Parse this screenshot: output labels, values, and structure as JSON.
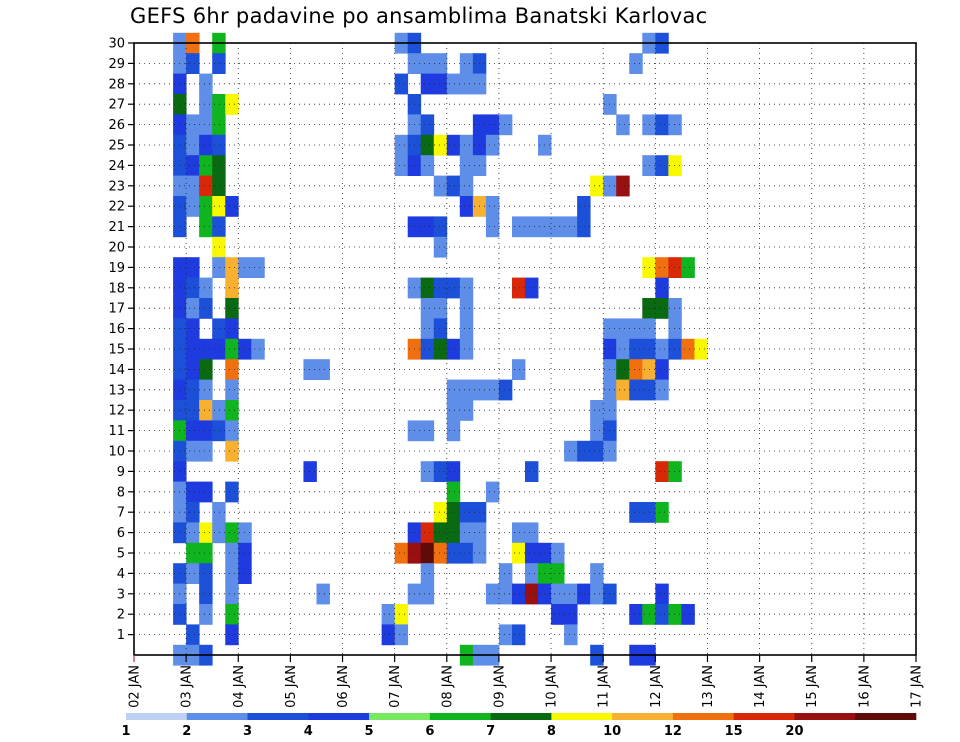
{
  "page": {
    "title": "GEFS 6hr padavine po ansamblima Banatski Karlovac"
  },
  "chart_data": {
    "type": "heatmap",
    "title": "GEFS 6hr padavine po ansamblima Banatski Karlovac",
    "x_ticks": [
      "02 JAN",
      "03 JAN",
      "04 JAN",
      "05 JAN",
      "06 JAN",
      "07 JAN",
      "08 JAN",
      "09 JAN",
      "10 JAN",
      "11 JAN",
      "12 JAN",
      "13 JAN",
      "14 JAN",
      "15 JAN",
      "16 JAN",
      "17 JAN"
    ],
    "y_ticks": [
      1,
      2,
      3,
      4,
      5,
      6,
      7,
      8,
      9,
      10,
      11,
      12,
      13,
      14,
      15,
      16,
      17,
      18,
      19,
      20,
      21,
      22,
      23,
      24,
      25,
      26,
      27,
      28,
      29,
      30
    ],
    "ylim": [
      0,
      30
    ],
    "grid": true,
    "step_hours": 6,
    "legend": {
      "placement": "bottom",
      "levels": [
        "1",
        "2",
        "3",
        "4",
        "5",
        "6",
        "7",
        "8",
        "10",
        "12",
        "15",
        "20"
      ],
      "colors": [
        "#bfd0f5",
        "#5f8ee8",
        "#1d50d8",
        "#1e3be0",
        "#77e860",
        "#10b41e",
        "#0a6a12",
        "#f8f800",
        "#f8b030",
        "#f07010",
        "#d82808",
        "#981010",
        "#600a0a"
      ]
    },
    "cells": [
      [
        30,
        3,
        1
      ],
      [
        30,
        4,
        9
      ],
      [
        30,
        6,
        5
      ],
      [
        30,
        20,
        1
      ],
      [
        30,
        21,
        2
      ],
      [
        30,
        39,
        1
      ],
      [
        30,
        40,
        2
      ],
      [
        29,
        3,
        1
      ],
      [
        29,
        4,
        2
      ],
      [
        29,
        6,
        2
      ],
      [
        29,
        21,
        1
      ],
      [
        29,
        22,
        1
      ],
      [
        29,
        23,
        1
      ],
      [
        29,
        25,
        1
      ],
      [
        29,
        26,
        2
      ],
      [
        29,
        38,
        1
      ],
      [
        28,
        3,
        3
      ],
      [
        28,
        5,
        1
      ],
      [
        28,
        20,
        2
      ],
      [
        28,
        22,
        3
      ],
      [
        28,
        23,
        3
      ],
      [
        28,
        24,
        1
      ],
      [
        28,
        25,
        1
      ],
      [
        28,
        26,
        1
      ],
      [
        27,
        3,
        6
      ],
      [
        27,
        5,
        1
      ],
      [
        27,
        6,
        5
      ],
      [
        27,
        7,
        7
      ],
      [
        27,
        21,
        2
      ],
      [
        27,
        36,
        1
      ],
      [
        26,
        3,
        3
      ],
      [
        26,
        4,
        1
      ],
      [
        26,
        5,
        1
      ],
      [
        26,
        6,
        5
      ],
      [
        26,
        21,
        1
      ],
      [
        26,
        22,
        2
      ],
      [
        26,
        26,
        3
      ],
      [
        26,
        27,
        3
      ],
      [
        26,
        28,
        1
      ],
      [
        26,
        37,
        1
      ],
      [
        26,
        39,
        1
      ],
      [
        26,
        40,
        2
      ],
      [
        26,
        41,
        1
      ],
      [
        25,
        3,
        2
      ],
      [
        25,
        4,
        1
      ],
      [
        25,
        5,
        3
      ],
      [
        25,
        6,
        2
      ],
      [
        25,
        20,
        1
      ],
      [
        25,
        21,
        2
      ],
      [
        25,
        22,
        6
      ],
      [
        25,
        23,
        7
      ],
      [
        25,
        24,
        3
      ],
      [
        25,
        25,
        1
      ],
      [
        25,
        26,
        3
      ],
      [
        25,
        27,
        1
      ],
      [
        25,
        31,
        1
      ],
      [
        24,
        3,
        2
      ],
      [
        24,
        4,
        3
      ],
      [
        24,
        5,
        5
      ],
      [
        24,
        6,
        6
      ],
      [
        24,
        20,
        1
      ],
      [
        24,
        21,
        3
      ],
      [
        24,
        22,
        1
      ],
      [
        24,
        25,
        1
      ],
      [
        24,
        26,
        1
      ],
      [
        24,
        39,
        1
      ],
      [
        24,
        40,
        2
      ],
      [
        24,
        41,
        7
      ],
      [
        23,
        3,
        1
      ],
      [
        23,
        4,
        1
      ],
      [
        23,
        5,
        10
      ],
      [
        23,
        6,
        6
      ],
      [
        23,
        23,
        1
      ],
      [
        23,
        24,
        2
      ],
      [
        23,
        25,
        1
      ],
      [
        23,
        35,
        7
      ],
      [
        23,
        36,
        1
      ],
      [
        23,
        37,
        11
      ],
      [
        22,
        3,
        2
      ],
      [
        22,
        4,
        1
      ],
      [
        22,
        5,
        5
      ],
      [
        22,
        6,
        7
      ],
      [
        22,
        7,
        3
      ],
      [
        22,
        25,
        3
      ],
      [
        22,
        26,
        8
      ],
      [
        22,
        27,
        1
      ],
      [
        22,
        34,
        2
      ],
      [
        21,
        3,
        2
      ],
      [
        21,
        5,
        5
      ],
      [
        21,
        6,
        2
      ],
      [
        21,
        21,
        3
      ],
      [
        21,
        22,
        3
      ],
      [
        21,
        23,
        2
      ],
      [
        21,
        27,
        1
      ],
      [
        21,
        29,
        1
      ],
      [
        21,
        30,
        1
      ],
      [
        21,
        31,
        1
      ],
      [
        21,
        32,
        1
      ],
      [
        21,
        33,
        1
      ],
      [
        21,
        34,
        2
      ],
      [
        20,
        6,
        7
      ],
      [
        20,
        23,
        1
      ],
      [
        19,
        3,
        3
      ],
      [
        19,
        4,
        3
      ],
      [
        19,
        6,
        1
      ],
      [
        19,
        7,
        8
      ],
      [
        19,
        8,
        1
      ],
      [
        19,
        9,
        1
      ],
      [
        19,
        39,
        7
      ],
      [
        19,
        40,
        9
      ],
      [
        19,
        41,
        10
      ],
      [
        19,
        42,
        5
      ],
      [
        18,
        3,
        3
      ],
      [
        18,
        4,
        2
      ],
      [
        18,
        5,
        1
      ],
      [
        18,
        7,
        8
      ],
      [
        18,
        21,
        1
      ],
      [
        18,
        22,
        6
      ],
      [
        18,
        23,
        2
      ],
      [
        18,
        24,
        2
      ],
      [
        18,
        25,
        1
      ],
      [
        18,
        29,
        10
      ],
      [
        18,
        30,
        3
      ],
      [
        18,
        40,
        3
      ],
      [
        17,
        3,
        3
      ],
      [
        17,
        4,
        1
      ],
      [
        17,
        5,
        2
      ],
      [
        17,
        7,
        6
      ],
      [
        17,
        22,
        1
      ],
      [
        17,
        23,
        1
      ],
      [
        17,
        25,
        1
      ],
      [
        17,
        39,
        6
      ],
      [
        17,
        40,
        6
      ],
      [
        17,
        41,
        1
      ],
      [
        16,
        3,
        2
      ],
      [
        16,
        4,
        3
      ],
      [
        16,
        6,
        2
      ],
      [
        16,
        7,
        3
      ],
      [
        16,
        22,
        1
      ],
      [
        16,
        23,
        2
      ],
      [
        16,
        25,
        1
      ],
      [
        16,
        36,
        1
      ],
      [
        16,
        37,
        1
      ],
      [
        16,
        38,
        1
      ],
      [
        16,
        39,
        1
      ],
      [
        16,
        41,
        1
      ],
      [
        15,
        3,
        2
      ],
      [
        15,
        4,
        3
      ],
      [
        15,
        5,
        3
      ],
      [
        15,
        6,
        3
      ],
      [
        15,
        7,
        5
      ],
      [
        15,
        8,
        3
      ],
      [
        15,
        9,
        1
      ],
      [
        15,
        21,
        9
      ],
      [
        15,
        22,
        2
      ],
      [
        15,
        23,
        6
      ],
      [
        15,
        24,
        3
      ],
      [
        15,
        25,
        1
      ],
      [
        15,
        36,
        3
      ],
      [
        15,
        37,
        1
      ],
      [
        15,
        38,
        2
      ],
      [
        15,
        39,
        2
      ],
      [
        15,
        40,
        1
      ],
      [
        15,
        41,
        2
      ],
      [
        15,
        42,
        9
      ],
      [
        15,
        43,
        7
      ],
      [
        14,
        3,
        2
      ],
      [
        14,
        4,
        3
      ],
      [
        14,
        5,
        6
      ],
      [
        14,
        7,
        9
      ],
      [
        14,
        13,
        1
      ],
      [
        14,
        14,
        1
      ],
      [
        14,
        29,
        1
      ],
      [
        14,
        36,
        1
      ],
      [
        14,
        37,
        6
      ],
      [
        14,
        38,
        9
      ],
      [
        14,
        39,
        8
      ],
      [
        14,
        40,
        3
      ],
      [
        13,
        3,
        3
      ],
      [
        13,
        4,
        2
      ],
      [
        13,
        5,
        1
      ],
      [
        13,
        7,
        1
      ],
      [
        13,
        24,
        1
      ],
      [
        13,
        25,
        1
      ],
      [
        13,
        26,
        1
      ],
      [
        13,
        27,
        1
      ],
      [
        13,
        28,
        2
      ],
      [
        13,
        36,
        1
      ],
      [
        13,
        37,
        8
      ],
      [
        13,
        38,
        2
      ],
      [
        13,
        39,
        2
      ],
      [
        13,
        40,
        1
      ],
      [
        12,
        3,
        2
      ],
      [
        12,
        4,
        2
      ],
      [
        12,
        5,
        8
      ],
      [
        12,
        6,
        1
      ],
      [
        12,
        7,
        5
      ],
      [
        12,
        24,
        1
      ],
      [
        12,
        25,
        1
      ],
      [
        12,
        35,
        1
      ],
      [
        12,
        36,
        1
      ],
      [
        11,
        3,
        5
      ],
      [
        11,
        4,
        3
      ],
      [
        11,
        5,
        3
      ],
      [
        11,
        6,
        2
      ],
      [
        11,
        7,
        1
      ],
      [
        11,
        21,
        1
      ],
      [
        11,
        22,
        1
      ],
      [
        11,
        24,
        1
      ],
      [
        11,
        35,
        1
      ],
      [
        11,
        36,
        2
      ],
      [
        10,
        3,
        2
      ],
      [
        10,
        4,
        1
      ],
      [
        10,
        5,
        1
      ],
      [
        10,
        7,
        8
      ],
      [
        10,
        33,
        1
      ],
      [
        10,
        34,
        2
      ],
      [
        10,
        35,
        2
      ],
      [
        10,
        36,
        1
      ],
      [
        9,
        3,
        3
      ],
      [
        9,
        13,
        3
      ],
      [
        9,
        22,
        1
      ],
      [
        9,
        23,
        2
      ],
      [
        9,
        24,
        3
      ],
      [
        9,
        30,
        2
      ],
      [
        9,
        40,
        10
      ],
      [
        9,
        41,
        5
      ],
      [
        8,
        3,
        1
      ],
      [
        8,
        4,
        3
      ],
      [
        8,
        5,
        3
      ],
      [
        8,
        7,
        2
      ],
      [
        8,
        24,
        5
      ],
      [
        8,
        27,
        1
      ],
      [
        7,
        3,
        1
      ],
      [
        7,
        4,
        2
      ],
      [
        7,
        6,
        1
      ],
      [
        7,
        23,
        7
      ],
      [
        7,
        24,
        6
      ],
      [
        7,
        25,
        2
      ],
      [
        7,
        26,
        2
      ],
      [
        7,
        38,
        2
      ],
      [
        7,
        39,
        2
      ],
      [
        7,
        40,
        5
      ],
      [
        6,
        3,
        2
      ],
      [
        6,
        4,
        1
      ],
      [
        6,
        5,
        7
      ],
      [
        6,
        6,
        1
      ],
      [
        6,
        7,
        5
      ],
      [
        6,
        8,
        1
      ],
      [
        6,
        21,
        3
      ],
      [
        6,
        22,
        10
      ],
      [
        6,
        23,
        6
      ],
      [
        6,
        24,
        6
      ],
      [
        6,
        25,
        1
      ],
      [
        6,
        26,
        1
      ],
      [
        6,
        29,
        1
      ],
      [
        6,
        30,
        1
      ],
      [
        5,
        4,
        5
      ],
      [
        5,
        5,
        5
      ],
      [
        5,
        7,
        1
      ],
      [
        5,
        8,
        3
      ],
      [
        5,
        20,
        9
      ],
      [
        5,
        21,
        11
      ],
      [
        5,
        22,
        12
      ],
      [
        5,
        23,
        9
      ],
      [
        5,
        24,
        2
      ],
      [
        5,
        25,
        2
      ],
      [
        5,
        26,
        1
      ],
      [
        5,
        29,
        7
      ],
      [
        5,
        30,
        3
      ],
      [
        5,
        31,
        3
      ],
      [
        5,
        32,
        1
      ],
      [
        4,
        3,
        2
      ],
      [
        4,
        4,
        1
      ],
      [
        4,
        5,
        2
      ],
      [
        4,
        7,
        1
      ],
      [
        4,
        8,
        3
      ],
      [
        4,
        22,
        1
      ],
      [
        4,
        28,
        1
      ],
      [
        4,
        30,
        1
      ],
      [
        4,
        31,
        5
      ],
      [
        4,
        32,
        5
      ],
      [
        4,
        35,
        1
      ],
      [
        3,
        3,
        1
      ],
      [
        3,
        5,
        2
      ],
      [
        3,
        7,
        1
      ],
      [
        3,
        14,
        1
      ],
      [
        3,
        21,
        1
      ],
      [
        3,
        22,
        1
      ],
      [
        3,
        27,
        1
      ],
      [
        3,
        28,
        1
      ],
      [
        3,
        29,
        3
      ],
      [
        3,
        30,
        11
      ],
      [
        3,
        31,
        3
      ],
      [
        3,
        32,
        1
      ],
      [
        3,
        33,
        1
      ],
      [
        3,
        34,
        3
      ],
      [
        3,
        35,
        1
      ],
      [
        3,
        36,
        2
      ],
      [
        3,
        40,
        3
      ],
      [
        2,
        3,
        2
      ],
      [
        2,
        5,
        1
      ],
      [
        2,
        7,
        5
      ],
      [
        2,
        19,
        1
      ],
      [
        2,
        20,
        7
      ],
      [
        2,
        32,
        3
      ],
      [
        2,
        33,
        3
      ],
      [
        2,
        38,
        3
      ],
      [
        2,
        39,
        5
      ],
      [
        2,
        40,
        2
      ],
      [
        2,
        41,
        5
      ],
      [
        2,
        42,
        3
      ],
      [
        1,
        4,
        2
      ],
      [
        1,
        7,
        3
      ],
      [
        1,
        19,
        3
      ],
      [
        1,
        20,
        1
      ],
      [
        1,
        28,
        1
      ],
      [
        1,
        29,
        2
      ],
      [
        1,
        33,
        1
      ],
      [
        0,
        3,
        1
      ],
      [
        0,
        4,
        1
      ],
      [
        0,
        5,
        2
      ],
      [
        0,
        25,
        5
      ],
      [
        0,
        26,
        1
      ],
      [
        0,
        27,
        1
      ],
      [
        0,
        35,
        2
      ],
      [
        0,
        38,
        3
      ],
      [
        0,
        39,
        3
      ]
    ]
  }
}
